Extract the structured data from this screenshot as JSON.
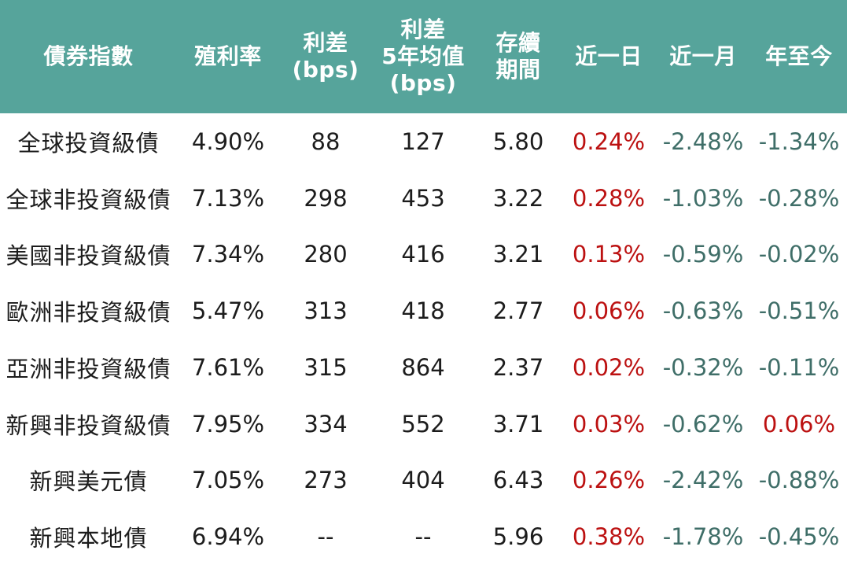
{
  "colors": {
    "header_bg": "#56a49b",
    "header_text": "#ffffff",
    "body_text": "#1c1c1c",
    "positive": "#bc1111",
    "negative": "#3f6e68",
    "background": "#ffffff"
  },
  "chart_data": {
    "type": "table",
    "title": "",
    "columns": [
      {
        "id": "index_name",
        "label": "債券指數"
      },
      {
        "id": "yield",
        "label": "殖利率"
      },
      {
        "id": "spread_bps",
        "label": "利差\n(bps)"
      },
      {
        "id": "spread_5y_avg_bps",
        "label": "利差\n5年均值\n(bps)"
      },
      {
        "id": "duration",
        "label": "存續\n期間"
      },
      {
        "id": "return_1d",
        "label": "近一日"
      },
      {
        "id": "return_1m",
        "label": "近一月"
      },
      {
        "id": "return_ytd",
        "label": "年至今"
      }
    ],
    "rows": [
      [
        "全球投資級債",
        "4.90%",
        "88",
        "127",
        "5.80",
        "0.24%",
        "-2.48%",
        "-1.34%"
      ],
      [
        "全球非投資級債",
        "7.13%",
        "298",
        "453",
        "3.22",
        "0.28%",
        "-1.03%",
        "-0.28%"
      ],
      [
        "美國非投資級債",
        "7.34%",
        "280",
        "416",
        "3.21",
        "0.13%",
        "-0.59%",
        "-0.02%"
      ],
      [
        "歐洲非投資級債",
        "5.47%",
        "313",
        "418",
        "2.77",
        "0.06%",
        "-0.63%",
        "-0.51%"
      ],
      [
        "亞洲非投資級債",
        "7.61%",
        "315",
        "864",
        "2.37",
        "0.02%",
        "-0.32%",
        "-0.11%"
      ],
      [
        "新興非投資級債",
        "7.95%",
        "334",
        "552",
        "3.71",
        "0.03%",
        "-0.62%",
        "0.06%"
      ],
      [
        "新興美元債",
        "7.05%",
        "273",
        "404",
        "6.43",
        "0.26%",
        "-2.42%",
        "-0.88%"
      ],
      [
        "新興本地債",
        "6.94%",
        "--",
        "--",
        "5.96",
        "0.38%",
        "-1.78%",
        "-0.45%"
      ]
    ],
    "return_column_indexes": [
      5,
      6,
      7
    ],
    "missing_value_marker": "--"
  }
}
